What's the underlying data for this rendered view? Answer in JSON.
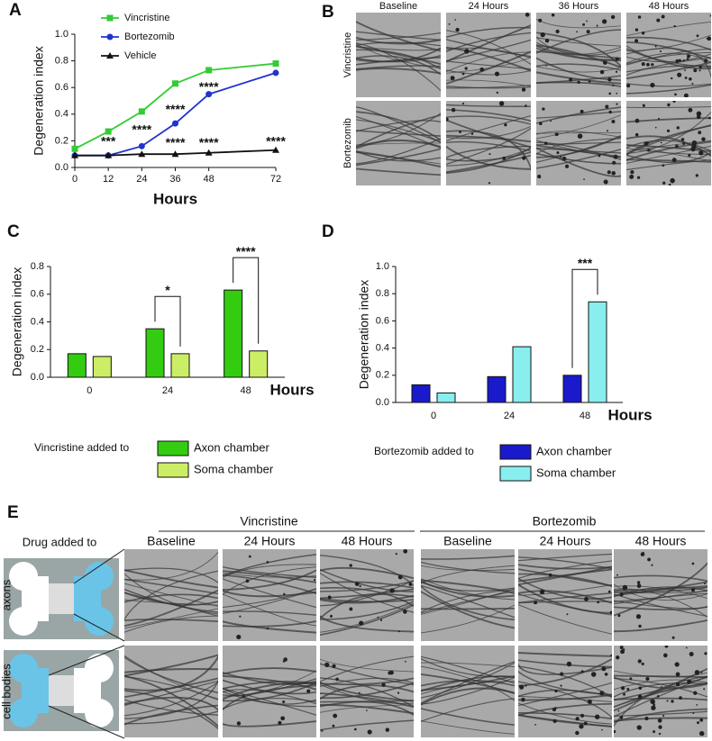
{
  "panel_labels": [
    "A",
    "B",
    "C",
    "D",
    "E"
  ],
  "chart_data": [
    {
      "type": "line",
      "xlabel": "Hours",
      "ylabel": "Degeneration index",
      "x": [
        0,
        12,
        24,
        36,
        48,
        72
      ],
      "xlim": [
        0,
        72
      ],
      "xticks": [
        0,
        12,
        24,
        36,
        48,
        72
      ],
      "ylim": [
        0,
        1
      ],
      "yticks": [
        {
          "value": 0,
          "label": "0.0"
        },
        0.2,
        0.4,
        0.6,
        0.8,
        {
          "value": 1,
          "label": "1.0"
        }
      ],
      "legend": "upper left",
      "series": [
        {
          "name": "Vincristine",
          "color": "#33cc33",
          "marker": "square",
          "values": [
            0.14,
            0.27,
            0.42,
            0.63,
            0.73,
            0.78
          ]
        },
        {
          "name": "Bortezomib",
          "color": "#2233cc",
          "marker": "circle",
          "values": [
            0.09,
            0.09,
            0.16,
            0.33,
            0.55,
            0.71
          ]
        },
        {
          "name": "Vehicle",
          "color": "#111111",
          "marker": "triangle",
          "values": [
            0.09,
            0.09,
            0.1,
            0.1,
            0.11,
            0.13
          ]
        }
      ],
      "annotations": [
        {
          "text": "***",
          "x": 12,
          "y": 0.19,
          "color": "#2233cc"
        },
        {
          "text": "****",
          "x": 24,
          "y": 0.28,
          "color": "#2233cc"
        },
        {
          "text": "****",
          "x": 36,
          "y": 0.43,
          "color": "#2233cc"
        },
        {
          "text": "****",
          "x": 48,
          "y": 0.6,
          "color": "#2233cc"
        },
        {
          "text": "****",
          "x": 36,
          "y": 0.18,
          "color": "#111111"
        },
        {
          "text": "****",
          "x": 48,
          "y": 0.18,
          "color": "#111111"
        },
        {
          "text": "****",
          "x": 72,
          "y": 0.19,
          "color": "#111111"
        }
      ]
    },
    {
      "type": "bar",
      "xlabel": "Hours",
      "ylabel": "Degeneration index",
      "categories": [
        "0",
        "24",
        "48"
      ],
      "ylim": [
        0,
        0.8
      ],
      "yticks": [
        {
          "value": 0,
          "label": "0.0"
        },
        0.2,
        0.4,
        0.6,
        0.8
      ],
      "legend_title": "Vincristine added to",
      "series": [
        {
          "name": "Axon chamber",
          "color": "#33cc11",
          "values": [
            0.17,
            0.35,
            0.63
          ]
        },
        {
          "name": "Soma chamber",
          "color": "#ccee66",
          "values": [
            0.15,
            0.17,
            0.19
          ]
        }
      ],
      "significance": [
        {
          "category": "24",
          "text": "*"
        },
        {
          "category": "48",
          "text": "****"
        }
      ]
    },
    {
      "type": "bar",
      "xlabel": "Hours",
      "ylabel": "Degeneration index",
      "categories": [
        "0",
        "24",
        "48"
      ],
      "ylim": [
        0,
        1
      ],
      "yticks": [
        {
          "value": 0,
          "label": "0.0"
        },
        0.2,
        0.4,
        0.6,
        0.8,
        {
          "value": 1,
          "label": "1.0"
        }
      ],
      "legend_title": "Bortezomib added to",
      "series": [
        {
          "name": "Axon chamber",
          "color": "#1a1acc",
          "values": [
            0.13,
            0.19,
            0.2
          ]
        },
        {
          "name": "Soma chamber",
          "color": "#88eeee",
          "values": [
            0.07,
            0.41,
            0.74
          ]
        }
      ],
      "significance": [
        {
          "category": "48",
          "text": "***"
        }
      ]
    }
  ],
  "panel_b": {
    "columns": [
      "Baseline",
      "24 Hours",
      "36 Hours",
      "48 Hours"
    ],
    "rows": [
      {
        "name": "Vincristine",
        "color": "#33aa33"
      },
      {
        "name": "Bortezomib",
        "color": "#3333cc"
      }
    ]
  },
  "panel_e": {
    "row_title": "Drug added to",
    "rows": [
      "axons",
      "cell bodies"
    ],
    "groups": [
      {
        "name": "Vincristine",
        "color": "#33aa33",
        "columns": [
          "Baseline",
          "24 Hours",
          "48 Hours"
        ]
      },
      {
        "name": "Bortezomib",
        "color": "#3355cc",
        "columns": [
          "Baseline",
          "24 Hours",
          "48 Hours"
        ]
      }
    ]
  }
}
